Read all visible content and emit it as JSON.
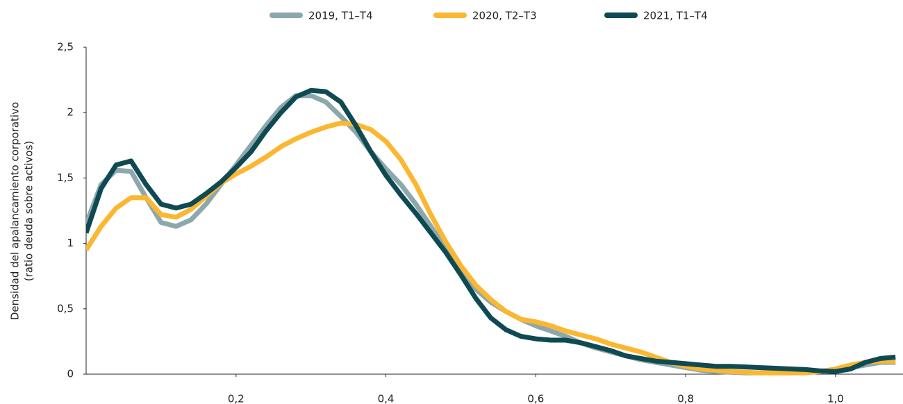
{
  "chart_data": {
    "type": "line",
    "ylabel": [
      "Densidad del apalancamiento corporativo",
      "(ratio deuda sobre activos)"
    ],
    "x": [
      0,
      0.02,
      0.04,
      0.06,
      0.08,
      0.1,
      0.12,
      0.14,
      0.16,
      0.18,
      0.2,
      0.22,
      0.24,
      0.26,
      0.28,
      0.3,
      0.32,
      0.34,
      0.36,
      0.38,
      0.4,
      0.42,
      0.44,
      0.46,
      0.48,
      0.5,
      0.52,
      0.54,
      0.56,
      0.58,
      0.6,
      0.62,
      0.64,
      0.66,
      0.68,
      0.7,
      0.72,
      0.74,
      0.76,
      0.78,
      0.8,
      0.82,
      0.84,
      0.86,
      0.88,
      0.9,
      0.92,
      0.94,
      0.96,
      0.98,
      1.0,
      1.02,
      1.04,
      1.06,
      1.08
    ],
    "series": [
      {
        "name": "2019, T1–T4",
        "color": "#8ca8ac",
        "values": [
          1.15,
          1.45,
          1.56,
          1.55,
          1.35,
          1.16,
          1.13,
          1.18,
          1.3,
          1.45,
          1.6,
          1.75,
          1.9,
          2.04,
          2.13,
          2.13,
          2.08,
          1.97,
          1.85,
          1.7,
          1.57,
          1.45,
          1.3,
          1.13,
          0.96,
          0.8,
          0.65,
          0.55,
          0.48,
          0.42,
          0.37,
          0.33,
          0.29,
          0.24,
          0.2,
          0.17,
          0.14,
          0.11,
          0.09,
          0.07,
          0.05,
          0.03,
          0.02,
          0.015,
          0.01,
          0.01,
          0.01,
          0.01,
          0.015,
          0.02,
          0.03,
          0.05,
          0.07,
          0.09,
          0.09
        ]
      },
      {
        "name": "2020, T2–T3",
        "color": "#fbb731",
        "values": [
          0.95,
          1.13,
          1.27,
          1.35,
          1.35,
          1.22,
          1.2,
          1.26,
          1.36,
          1.46,
          1.53,
          1.59,
          1.66,
          1.74,
          1.8,
          1.85,
          1.89,
          1.92,
          1.91,
          1.87,
          1.78,
          1.64,
          1.45,
          1.22,
          1.01,
          0.83,
          0.68,
          0.57,
          0.48,
          0.42,
          0.4,
          0.37,
          0.33,
          0.3,
          0.27,
          0.23,
          0.2,
          0.17,
          0.13,
          0.09,
          0.06,
          0.04,
          0.03,
          0.02,
          0.015,
          0.01,
          0.01,
          0.01,
          0.01,
          0.02,
          0.04,
          0.07,
          0.09,
          0.1,
          0.1
        ]
      },
      {
        "name": "2021, T1–T4",
        "color": "#0f4a53",
        "values": [
          1.08,
          1.42,
          1.6,
          1.63,
          1.45,
          1.3,
          1.27,
          1.3,
          1.38,
          1.47,
          1.58,
          1.7,
          1.86,
          2.0,
          2.12,
          2.17,
          2.16,
          2.08,
          1.9,
          1.7,
          1.52,
          1.37,
          1.23,
          1.08,
          0.93,
          0.76,
          0.58,
          0.43,
          0.34,
          0.29,
          0.27,
          0.26,
          0.26,
          0.24,
          0.21,
          0.18,
          0.14,
          0.12,
          0.1,
          0.09,
          0.08,
          0.07,
          0.06,
          0.06,
          0.055,
          0.05,
          0.045,
          0.04,
          0.035,
          0.025,
          0.02,
          0.04,
          0.09,
          0.12,
          0.13
        ]
      }
    ],
    "xlim": [
      0,
      1.09
    ],
    "ylim": [
      0,
      2.5
    ],
    "xticks": [
      {
        "value": 0.2,
        "label": "0,2"
      },
      {
        "value": 0.4,
        "label": "0,4"
      },
      {
        "value": 0.6,
        "label": "0,6"
      },
      {
        "value": 0.8,
        "label": "0,8"
      },
      {
        "value": 1.0,
        "label": "1,0"
      }
    ],
    "yticks": [
      0,
      {
        "value": 0.5,
        "label": "0,5"
      },
      1,
      {
        "value": 1.5,
        "label": "1,5"
      },
      2,
      {
        "value": 2.5,
        "label": "2,5"
      }
    ],
    "grid": false,
    "legend": "top"
  }
}
